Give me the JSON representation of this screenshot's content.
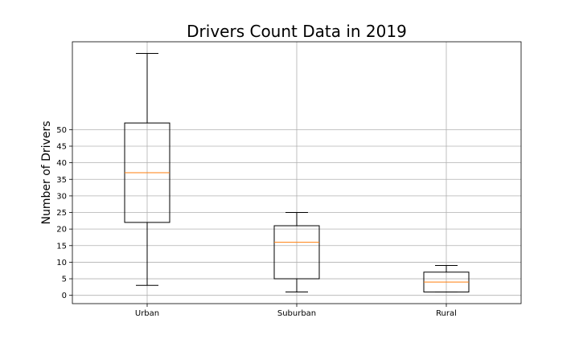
{
  "chart_data": {
    "type": "box",
    "title": "Drivers Count Data in 2019",
    "xlabel": "",
    "ylabel": "Number of Drivers",
    "categories": [
      "Urban",
      "Suburban",
      "Rural"
    ],
    "boxes": [
      {
        "category": "Urban",
        "min": 3,
        "q1": 22,
        "median": 37,
        "q3": 52,
        "max": 73
      },
      {
        "category": "Suburban",
        "min": 1,
        "q1": 5,
        "median": 16,
        "q3": 21,
        "max": 25
      },
      {
        "category": "Rural",
        "min": 1,
        "q1": 1,
        "median": 4,
        "q3": 7,
        "max": 9
      }
    ],
    "yticks": [
      0,
      5,
      10,
      15,
      20,
      25,
      30,
      35,
      40,
      45,
      50
    ],
    "ylim": [
      -2.5,
      76.5
    ],
    "grid": true,
    "colors": {
      "box": "#000000",
      "median": "#ff7f0e",
      "grid": "#b0b0b0"
    }
  }
}
